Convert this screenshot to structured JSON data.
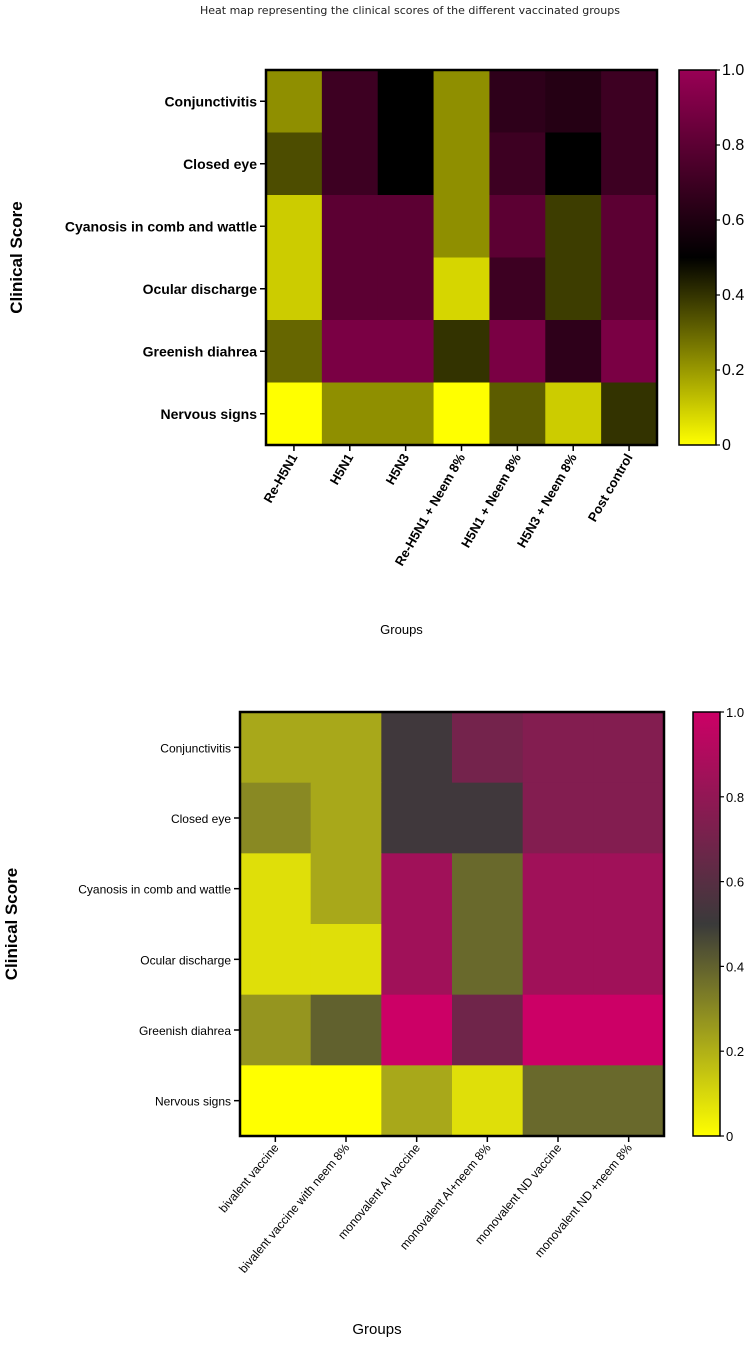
{
  "figure_title": "Heat map representing the clinical scores of the different vaccinated groups",
  "chart_data": [
    {
      "type": "heatmap",
      "title": "Heat map representing the clinical scores of the different vaccinated groups",
      "ylabel": "Clinical Score",
      "xlabel": "Groups",
      "rows": [
        "Conjunctivitis",
        "Closed eye",
        "Cyanosis in comb and wattle",
        "Ocular discharge",
        "Greenish diahrea",
        "Nervous signs"
      ],
      "columns": [
        "Re-H5N1",
        "H5N1",
        "H5N3",
        "Re-H5N1 + Neem 8%",
        "H5N1 + Neem 8%",
        "H5N3 + Neem 8%",
        "Post control"
      ],
      "values": [
        [
          0.22,
          0.7,
          0.5,
          0.22,
          0.65,
          0.62,
          0.7
        ],
        [
          0.35,
          0.7,
          0.5,
          0.22,
          0.7,
          0.5,
          0.7
        ],
        [
          0.1,
          0.8,
          0.8,
          0.22,
          0.8,
          0.38,
          0.8
        ],
        [
          0.1,
          0.8,
          0.8,
          0.08,
          0.7,
          0.38,
          0.8
        ],
        [
          0.3,
          0.9,
          0.9,
          0.4,
          0.9,
          0.65,
          0.9
        ],
        [
          0.0,
          0.22,
          0.22,
          0.0,
          0.32,
          0.1,
          0.4
        ]
      ],
      "colorbar": {
        "range": [
          0,
          1
        ],
        "ticks": [
          "0",
          "0.2",
          "0.4",
          "0.6",
          "0.8",
          "1.0"
        ],
        "colors": [
          "#ffff00",
          "#000000",
          "#990055"
        ]
      },
      "grid": false
    },
    {
      "type": "heatmap",
      "title": "",
      "ylabel": "Clinical Score",
      "xlabel": "Groups",
      "rows": [
        "Conjunctivitis",
        "Closed eye",
        "Cyanosis in comb and wattle",
        "Ocular discharge",
        "Greenish diahrea",
        "Nervous signs"
      ],
      "columns": [
        "bivalent vaccine",
        "bivalent vaccine with neem 8%",
        "monovalent  AI vaccine",
        "monovalent AI+neem 8%",
        "monovalent ND vaccine",
        "monovalent ND +neem 8%"
      ],
      "values": [
        [
          0.22,
          0.22,
          0.52,
          0.7,
          0.75,
          0.75
        ],
        [
          0.3,
          0.22,
          0.52,
          0.52,
          0.75,
          0.75
        ],
        [
          0.08,
          0.22,
          0.85,
          0.38,
          0.85,
          0.85
        ],
        [
          0.08,
          0.08,
          0.85,
          0.38,
          0.85,
          0.85
        ],
        [
          0.27,
          0.4,
          1.0,
          0.68,
          1.0,
          1.0
        ],
        [
          0.0,
          0.0,
          0.22,
          0.08,
          0.38,
          0.38
        ]
      ],
      "colorbar": {
        "range": [
          0,
          1
        ],
        "ticks": [
          "0",
          "0.2",
          "0.4",
          "0.6",
          "0.8",
          "1.0"
        ],
        "colors": [
          "#ffff00",
          "#3a3a3a",
          "#cc0066"
        ]
      },
      "grid": false
    }
  ]
}
